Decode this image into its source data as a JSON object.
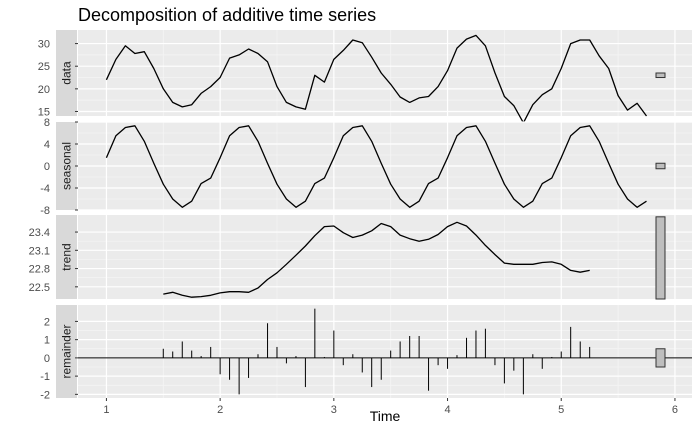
{
  "chart_data": {
    "type": "line",
    "title": "Decomposition of additive time series",
    "xlabel": "Time",
    "x_ticks": [
      1,
      2,
      3,
      4,
      5,
      6
    ],
    "x_range": [
      0.75,
      6.15
    ],
    "grid": true,
    "panels": [
      {
        "name": "data",
        "ylim": [
          14,
          33
        ],
        "y_ticks": [
          15,
          20,
          25,
          30
        ],
        "range_bar": [
          22.5,
          23.5
        ],
        "series": {
          "x": [
            1.0,
            1.083,
            1.167,
            1.25,
            1.333,
            1.417,
            1.5,
            1.583,
            1.667,
            1.75,
            1.833,
            1.917,
            2.0,
            2.083,
            2.167,
            2.25,
            2.333,
            2.417,
            2.5,
            2.583,
            2.667,
            2.75,
            2.833,
            2.917,
            3.0,
            3.083,
            3.167,
            3.25,
            3.333,
            3.417,
            3.5,
            3.583,
            3.667,
            3.75,
            3.833,
            3.917,
            4.0,
            4.083,
            4.167,
            4.25,
            4.333,
            4.417,
            4.5,
            4.583,
            4.667,
            4.75,
            4.833,
            4.917,
            5.0,
            5.083,
            5.167,
            5.25,
            5.333,
            5.417,
            5.5,
            5.583,
            5.667,
            5.75
          ],
          "y": [
            22,
            26.5,
            29.5,
            27.8,
            28.2,
            24.5,
            20,
            17,
            16,
            16.5,
            19,
            20.5,
            22.5,
            26.8,
            27.5,
            28.8,
            27.8,
            26,
            20.5,
            17,
            16,
            15.5,
            23,
            21.5,
            26.5,
            28.5,
            30.8,
            30.2,
            27,
            23.5,
            21,
            18.2,
            17,
            18,
            18.3,
            20.5,
            24,
            29,
            31,
            31.8,
            29.5,
            23.5,
            18.3,
            16.3,
            12.5,
            16.5,
            18.7,
            20,
            24.5,
            30,
            30.8,
            30.8,
            27.3,
            24.5,
            18.5,
            15.3,
            16.8,
            14
          ]
        }
      },
      {
        "name": "seasonal",
        "ylim": [
          -8,
          8
        ],
        "y_ticks": [
          -8,
          -4,
          0,
          4,
          8
        ],
        "range_bar": [
          -0.5,
          0.5
        ],
        "series": {
          "x": [
            1.0,
            1.083,
            1.167,
            1.25,
            1.333,
            1.417,
            1.5,
            1.583,
            1.667,
            1.75,
            1.833,
            1.917,
            2.0,
            2.083,
            2.167,
            2.25,
            2.333,
            2.417,
            2.5,
            2.583,
            2.667,
            2.75,
            2.833,
            2.917,
            3.0,
            3.083,
            3.167,
            3.25,
            3.333,
            3.417,
            3.5,
            3.583,
            3.667,
            3.75,
            3.833,
            3.917,
            4.0,
            4.083,
            4.167,
            4.25,
            4.333,
            4.417,
            4.5,
            4.583,
            4.667,
            4.75,
            4.833,
            4.917,
            5.0,
            5.083,
            5.167,
            5.25,
            5.333,
            5.417,
            5.5,
            5.583,
            5.667,
            5.75
          ],
          "y": [
            1.5,
            5.5,
            7.0,
            7.3,
            4.5,
            0.5,
            -3.3,
            -6.0,
            -7.5,
            -6.4,
            -3.2,
            -2.2,
            1.5,
            5.5,
            7.0,
            7.3,
            4.5,
            0.5,
            -3.3,
            -6.0,
            -7.5,
            -6.4,
            -3.2,
            -2.2,
            1.5,
            5.5,
            7.0,
            7.3,
            4.5,
            0.5,
            -3.3,
            -6.0,
            -7.5,
            -6.4,
            -3.2,
            -2.2,
            1.5,
            5.5,
            7.0,
            7.3,
            4.5,
            0.5,
            -3.3,
            -6.0,
            -7.5,
            -6.4,
            -3.2,
            -2.2,
            1.5,
            5.5,
            7.0,
            7.3,
            4.5,
            0.5,
            -3.3,
            -6.0,
            -7.5,
            -6.4
          ]
        }
      },
      {
        "name": "trend",
        "ylim": [
          22.3,
          23.68
        ],
        "y_ticks": [
          22.5,
          22.8,
          23.1,
          23.4
        ],
        "range_bar": [
          22.3,
          23.65
        ],
        "series": {
          "x": [
            1.5,
            1.583,
            1.667,
            1.75,
            1.833,
            1.917,
            2.0,
            2.083,
            2.167,
            2.25,
            2.333,
            2.417,
            2.5,
            2.583,
            2.667,
            2.75,
            2.833,
            2.917,
            3.0,
            3.083,
            3.167,
            3.25,
            3.333,
            3.417,
            3.5,
            3.583,
            3.667,
            3.75,
            3.833,
            3.917,
            4.0,
            4.083,
            4.167,
            4.25,
            4.333,
            4.417,
            4.5,
            4.583,
            4.667,
            4.75,
            4.833,
            4.917,
            5.0,
            5.083,
            5.167,
            5.25
          ],
          "y": [
            22.38,
            22.41,
            22.36,
            22.33,
            22.34,
            22.36,
            22.4,
            22.42,
            22.42,
            22.41,
            22.48,
            22.62,
            22.73,
            22.87,
            23.02,
            23.17,
            23.34,
            23.49,
            23.5,
            23.39,
            23.31,
            23.35,
            23.42,
            23.54,
            23.49,
            23.35,
            23.29,
            23.25,
            23.28,
            23.36,
            23.49,
            23.56,
            23.5,
            23.35,
            23.18,
            23.03,
            22.89,
            22.87,
            22.87,
            22.87,
            22.9,
            22.91,
            22.87,
            22.77,
            22.74,
            22.77
          ]
        }
      },
      {
        "name": "remainder",
        "ylim": [
          -2.2,
          2.9
        ],
        "y_ticks": [
          -2,
          -1,
          0,
          1,
          2
        ],
        "range_bar": [
          -0.5,
          0.5
        ],
        "series": {
          "x": [
            1.5,
            1.583,
            1.667,
            1.75,
            1.833,
            1.917,
            2.0,
            2.083,
            2.167,
            2.25,
            2.333,
            2.417,
            2.5,
            2.583,
            2.667,
            2.75,
            2.833,
            2.917,
            3.0,
            3.083,
            3.167,
            3.25,
            3.333,
            3.417,
            3.5,
            3.583,
            3.667,
            3.75,
            3.833,
            3.917,
            4.0,
            4.083,
            4.167,
            4.25,
            4.333,
            4.417,
            4.5,
            4.583,
            4.667,
            4.75,
            4.833,
            4.917,
            5.0,
            5.083,
            5.167,
            5.25
          ],
          "y": [
            0.5,
            0.35,
            0.9,
            0.4,
            0.1,
            0.6,
            -0.9,
            -1.2,
            -2.0,
            -1.1,
            0.2,
            1.9,
            0.6,
            -0.3,
            0.1,
            -1.6,
            2.7,
            0.05,
            1.5,
            -0.4,
            0.2,
            -0.8,
            -1.6,
            -1.2,
            0.4,
            0.9,
            1.2,
            1.2,
            -1.8,
            -0.4,
            -0.6,
            0.15,
            1.1,
            1.5,
            1.6,
            -0.4,
            -1.4,
            -0.7,
            -2.0,
            0.2,
            -0.6,
            0.05,
            0.35,
            1.7,
            0.9,
            0.6
          ]
        }
      }
    ]
  }
}
